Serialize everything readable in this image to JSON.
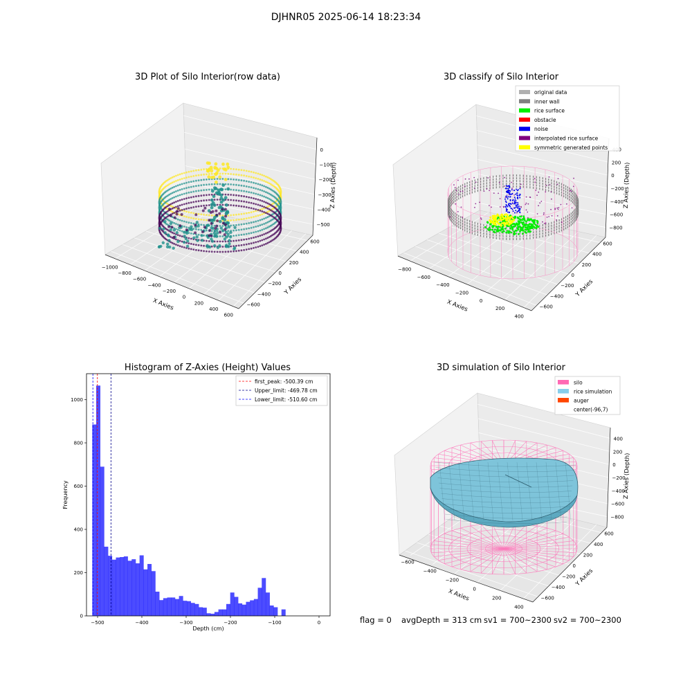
{
  "figure": {
    "title": "DJHNR05 2025-06-14 18:23:34",
    "status": {
      "flag": "flag = 0",
      "avg_depth": "avgDepth = 313 cm",
      "sv1": "sv1 = 700~2300",
      "sv2": "sv2 = 700~2300"
    }
  },
  "chart_data": [
    {
      "type": "scatter",
      "title": "3D Plot of Silo Interior(row data)",
      "xlabel": "X Axies",
      "ylabel": "Y Axies",
      "zlabel": "Z Axies (Depth)",
      "x_ticks": [
        "−1000",
        "−800",
        "−600",
        "−400",
        "−200",
        "0",
        "200",
        "400",
        "600"
      ],
      "y_ticks": [
        "−600",
        "−400",
        "−200",
        "0",
        "200",
        "400",
        "600"
      ],
      "z_ticks": [
        "0",
        "−100",
        "−200",
        "−300",
        "−400",
        "−500"
      ],
      "xlim": [
        -1000,
        600
      ],
      "ylim": [
        -600,
        600
      ],
      "zlim": [
        -550,
        0
      ],
      "colormap": "viridis",
      "colors": {
        "low": "#440154",
        "mid": "#21918c",
        "high": "#fde725"
      }
    },
    {
      "type": "scatter",
      "title": "3D classify of Silo Interior",
      "xlabel": "X Axies",
      "ylabel": "Y Axies",
      "zlabel": "Z Axies (Depth)",
      "x_ticks": [
        "−800",
        "−600",
        "−400",
        "−200",
        "0",
        "200",
        "400"
      ],
      "y_ticks": [
        "−600",
        "−400",
        "−200",
        "0",
        "200",
        "400",
        "600"
      ],
      "z_ticks": [
        "400",
        "200",
        "0",
        "−200",
        "−400",
        "−600",
        "−800"
      ],
      "legend_position": "top-right",
      "legend": [
        {
          "label": "original data",
          "color": "#b0b0b0"
        },
        {
          "label": "inner wall",
          "color": "#808080"
        },
        {
          "label": "rice surface",
          "color": "#00ee00"
        },
        {
          "label": "obstacle",
          "color": "#ff0000"
        },
        {
          "label": "noise",
          "color": "#0000ee"
        },
        {
          "label": "interpolated rice surface",
          "color": "#800080"
        },
        {
          "label": "symmetric generated points",
          "color": "#ffff00"
        }
      ]
    },
    {
      "type": "bar",
      "title": "Histogram of Z-Axies (Height) Values",
      "xlabel": "Depth (cm)",
      "ylabel": "Frequency",
      "xlim": [
        -525,
        25
      ],
      "ylim": [
        0,
        1120
      ],
      "x_ticks": [
        -500,
        -400,
        -300,
        -200,
        -100,
        0
      ],
      "x_tick_labels": [
        "−500",
        "−400",
        "−300",
        "−200",
        "−100",
        "0"
      ],
      "y_ticks": [
        0,
        200,
        400,
        600,
        800,
        1000
      ],
      "bin_start": -512,
      "bin_width": 8.9,
      "values": [
        885,
        1065,
        690,
        320,
        278,
        260,
        270,
        272,
        275,
        255,
        262,
        243,
        280,
        215,
        240,
        207,
        112,
        73,
        82,
        85,
        85,
        78,
        92,
        70,
        68,
        60,
        55,
        40,
        38,
        12,
        10,
        18,
        30,
        30,
        55,
        108,
        88,
        58,
        52,
        65,
        72,
        78,
        130,
        175,
        108,
        48,
        40,
        0,
        30
      ],
      "bar_color": "#0000ff",
      "legend_position": "top-right",
      "vlines": [
        {
          "label": "first_peak: -500.39 cm",
          "x": -500.39,
          "color": "#ff0000"
        },
        {
          "label": "Upper_limit: -469.78 cm",
          "x": -469.78,
          "color": "#00008b"
        },
        {
          "label": "Lower_limit: -510.60 cm",
          "x": -510.6,
          "color": "#0000ff"
        }
      ]
    },
    {
      "type": "surface",
      "title": "3D simulation of Silo Interior",
      "xlabel": "X Axies",
      "ylabel": "Y Axies",
      "zlabel": "Z Axies (Depth)",
      "x_ticks": [
        "−600",
        "−400",
        "−200",
        "0",
        "200",
        "400"
      ],
      "y_ticks": [
        "−600",
        "−400",
        "−200",
        "0",
        "200",
        "400",
        "600"
      ],
      "z_ticks": [
        "400",
        "200",
        "0",
        "−200",
        "−400",
        "−600",
        "−800"
      ],
      "legend_position": "top-right",
      "legend": [
        {
          "label": "silo",
          "color": "#ff69b4"
        },
        {
          "label": "rice simulation",
          "color": "#87ceeb"
        },
        {
          "label": "auger",
          "color": "#ff4500"
        },
        {
          "label": "center(-96,7)",
          "color": ""
        }
      ]
    }
  ]
}
